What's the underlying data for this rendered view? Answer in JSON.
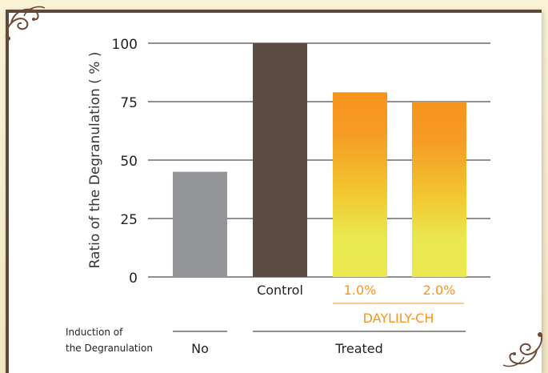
{
  "chart_data": {
    "type": "bar",
    "ylabel": "Ratio of the Degranulation ( % )",
    "ylim": [
      0,
      100
    ],
    "yticks": [
      0,
      25,
      50,
      75,
      100
    ],
    "grid": true,
    "categories": [
      "",
      "Control",
      "1.0%",
      "2.0%"
    ],
    "values": [
      45,
      100,
      79,
      75
    ],
    "colors": [
      "#939598",
      "#5b4d43",
      "gradient:#f7941d-#ebe94f",
      "gradient:#f7941d-#ebe94f"
    ],
    "group_label": "DAYLILY-CH",
    "group_label_color": "#f7941d",
    "induction": {
      "label_line1": "Induction of",
      "label_line2": "the Degranulation",
      "no_label": "No",
      "treated_label": "Treated"
    }
  }
}
